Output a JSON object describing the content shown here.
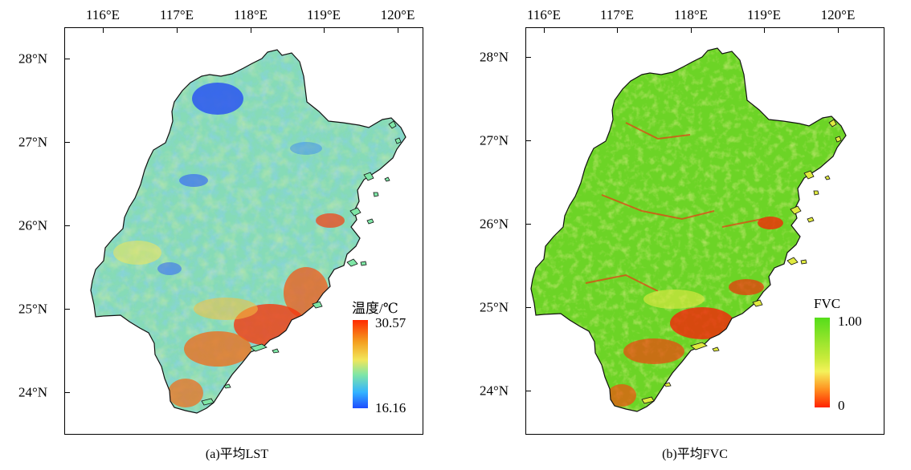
{
  "axes": {
    "lon_labels": [
      "116°E",
      "117°E",
      "118°E",
      "119°E",
      "120°E"
    ],
    "lat_labels": [
      "28°N",
      "27°N",
      "26°N",
      "25°N",
      "24°N"
    ]
  },
  "panel_a": {
    "caption": "(a)平均LST",
    "legend_title": "温度/℃",
    "legend_max": "30.57",
    "legend_min": "16.16",
    "colors": {
      "low": "#1e4dff",
      "mid_low": "#33b3ff",
      "mid": "#7fe6a6",
      "mid_high": "#f2e65a",
      "high": "#ff2a00"
    }
  },
  "panel_b": {
    "caption": "(b)平均FVC",
    "legend_title": "FVC",
    "legend_max": "1.00",
    "legend_min": "0",
    "colors": {
      "low": "#ff2200",
      "mid": "#f4f25a",
      "high": "#55dd1a"
    }
  }
}
